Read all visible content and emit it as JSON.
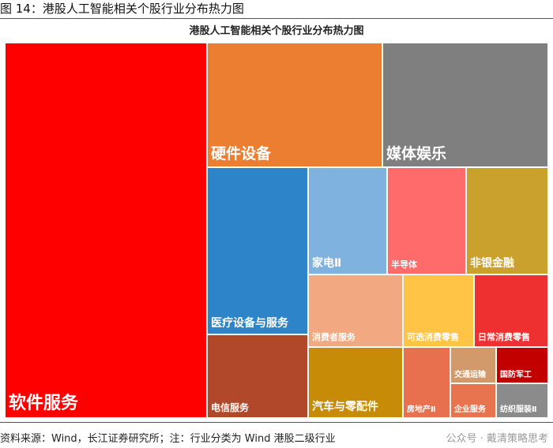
{
  "caption": "图 14：港股人工智能相关个股行业分布热力图",
  "source": "资料来源：Wind，长江证券研究所；注：行业分类为 Wind 港股二级行业",
  "watermark": "公众号 · 戴清策略思考",
  "chart_data": {
    "type": "treemap",
    "title": "港股人工智能相关个股行业分布热力图",
    "items": [
      {
        "name": "软件服务",
        "color": "#ff0000"
      },
      {
        "name": "硬件设备",
        "color": "#ec7e31"
      },
      {
        "name": "媒体娱乐",
        "color": "#7f7f7f"
      },
      {
        "name": "医疗设备与服务",
        "color": "#2e84c8"
      },
      {
        "name": "家电Ⅱ",
        "color": "#80b2e0"
      },
      {
        "name": "半导体",
        "color": "#ff6a6a"
      },
      {
        "name": "非银金融",
        "color": "#cba12d"
      },
      {
        "name": "消费者服务",
        "color": "#f2a982"
      },
      {
        "name": "可选消费零售",
        "color": "#ffc446"
      },
      {
        "name": "日常消费零售",
        "color": "#ee3030"
      },
      {
        "name": "电信服务",
        "color": "#b2482a"
      },
      {
        "name": "汽车与零配件",
        "color": "#c88b08"
      },
      {
        "name": "房地产Ⅱ",
        "color": "#e8704f"
      },
      {
        "name": "交通运输",
        "color": "#d29a6a"
      },
      {
        "name": "国防军工",
        "color": "#c20000"
      },
      {
        "name": "企业服务",
        "color": "#e8734f"
      },
      {
        "name": "纺织服装Ⅱ",
        "color": "#8b8b8b"
      }
    ]
  }
}
